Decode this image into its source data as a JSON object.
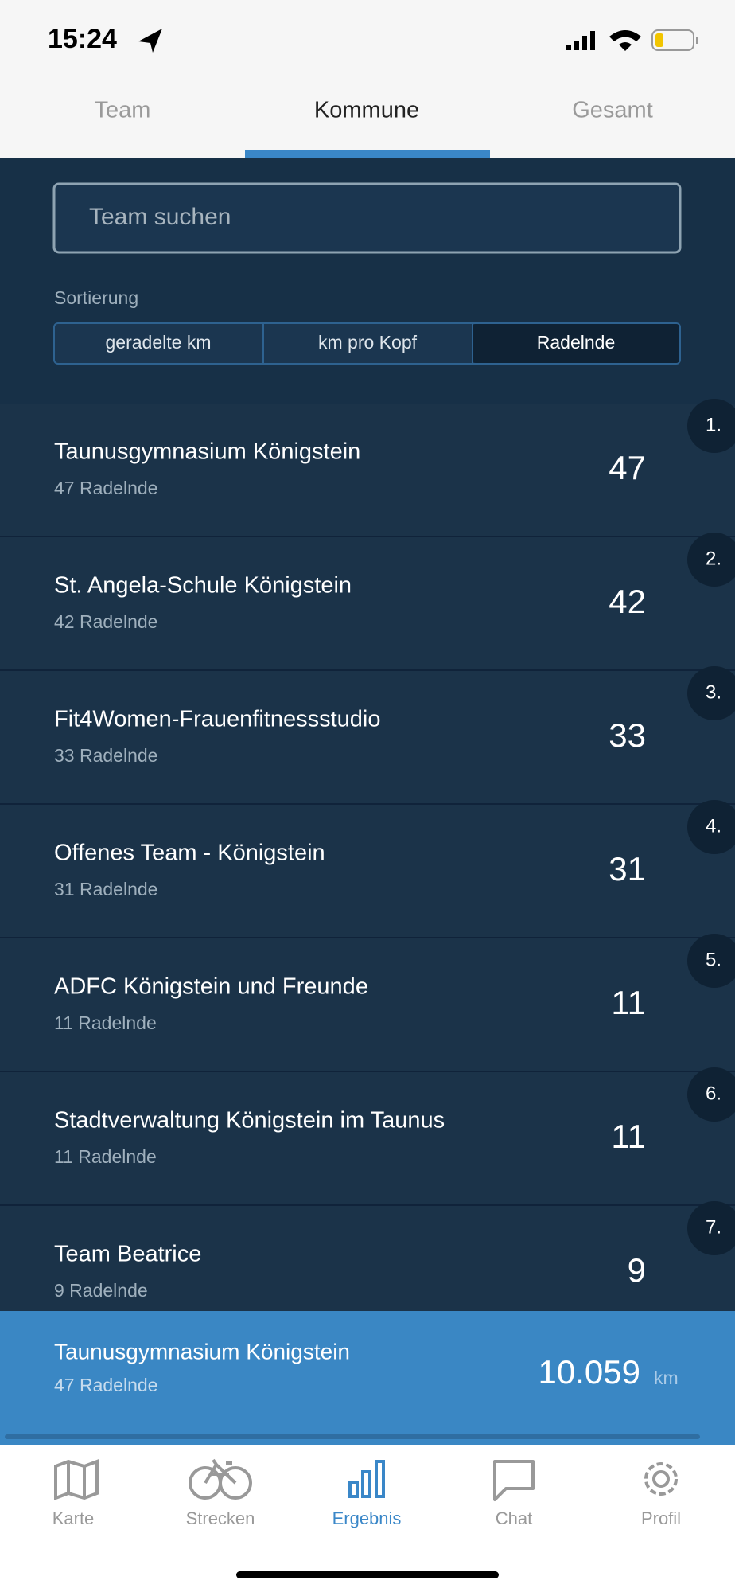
{
  "status": {
    "time": "15:24"
  },
  "tabs": [
    "Team",
    "Kommune",
    "Gesamt"
  ],
  "search": {
    "placeholder": "Team suchen"
  },
  "sort": {
    "label": "Sortierung",
    "options": [
      "geradelte km",
      "km pro Kopf",
      "Radelnde"
    ]
  },
  "rows": [
    {
      "rank": "1.",
      "name": "Taunusgymnasium Königstein",
      "subtitle": "47 Radelnde",
      "value": 47
    },
    {
      "rank": "2.",
      "name": "St. Angela-Schule Königstein",
      "subtitle": "42 Radelnde",
      "value": 42
    },
    {
      "rank": "3.",
      "name": "Fit4Women-Frauenfitnessstudio",
      "subtitle": "33 Radelnde",
      "value": 33
    },
    {
      "rank": "4.",
      "name": "Offenes Team - Königstein",
      "subtitle": "31 Radelnde",
      "value": 31
    },
    {
      "rank": "5.",
      "name": "ADFC Königstein und Freunde",
      "subtitle": "11 Radelnde",
      "value": 11
    },
    {
      "rank": "6.",
      "name": "Stadtverwaltung Königstein im Taunus",
      "subtitle": "11 Radelnde",
      "value": 11
    },
    {
      "rank": "7.",
      "name": "Team Beatrice",
      "subtitle": "9 Radelnde",
      "value": 9
    }
  ],
  "footer": {
    "name": "Taunusgymnasium Königstein",
    "subtitle": "47 Radelnde",
    "value": "10.059",
    "unit": "km"
  },
  "nav": [
    "Karte",
    "Strecken",
    "Ergebnis",
    "Chat",
    "Profil"
  ]
}
